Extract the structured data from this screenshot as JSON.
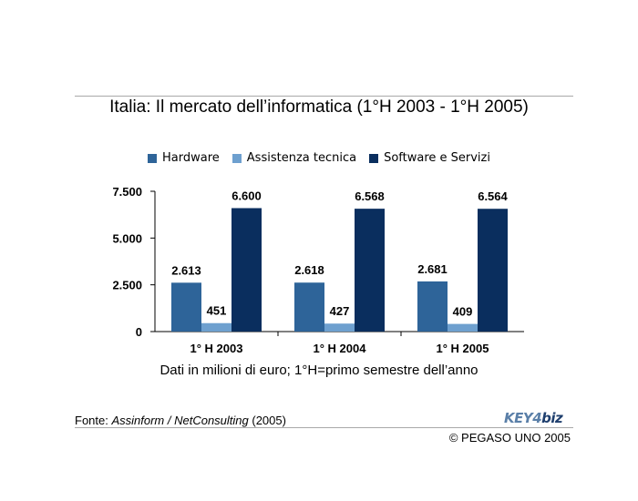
{
  "colors": {
    "hardware": "#2e6499",
    "assistenza": "#6ea0cf",
    "software": "#0a2e5e"
  },
  "source": {
    "prefix": "Fonte: ",
    "italic": "Assinform / NetConsulting",
    "suffix": " (2005)"
  },
  "logo": {
    "left": "KEY4",
    "right": "biz"
  },
  "copyright": "© PEGASO UNO 2005",
  "note": "Dati in milioni di euro; 1°H=primo semestre dell’anno",
  "chart_data": {
    "type": "bar",
    "title": "Italia: Il mercato dell’informatica (1°H 2003 - 1°H 2005)",
    "categories": [
      "1° H 2003",
      "1° H 2004",
      "1° H 2005"
    ],
    "series": [
      {
        "name": "Hardware",
        "values": [
          2613,
          2618,
          2681
        ],
        "labels": [
          "2.613",
          "2.618",
          "2.681"
        ]
      },
      {
        "name": "Assistenza tecnica",
        "values": [
          451,
          427,
          409
        ],
        "labels": [
          "451",
          "427",
          "409"
        ]
      },
      {
        "name": "Software e Servizi",
        "values": [
          6600,
          6568,
          6564
        ],
        "labels": [
          "6.600",
          "6.568",
          "6.564"
        ]
      }
    ],
    "yticks": [
      0,
      2500,
      5000,
      7500
    ],
    "ytick_labels": [
      "0",
      "2.500",
      "5.000",
      "7.500"
    ],
    "ylim": [
      0,
      7500
    ],
    "grid": false,
    "legend_position": "top"
  }
}
